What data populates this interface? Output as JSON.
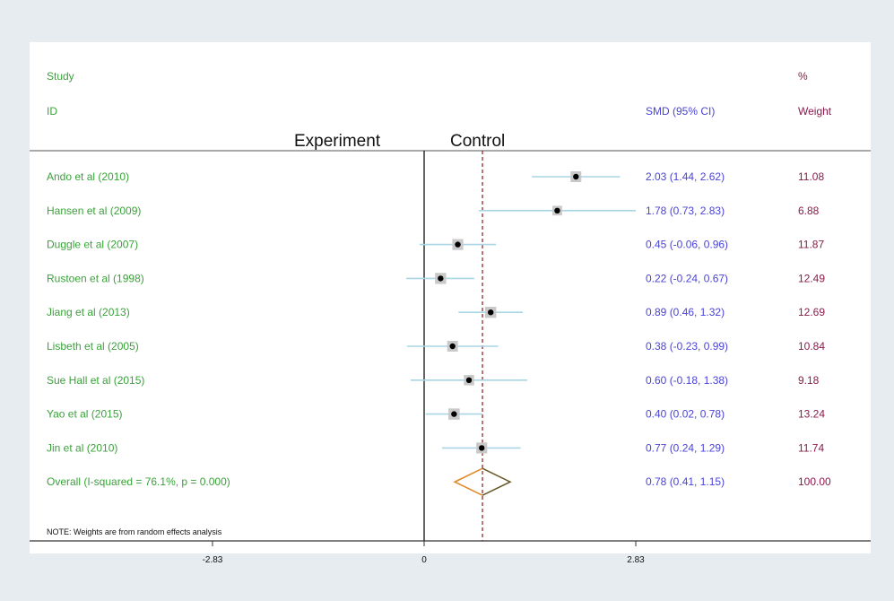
{
  "chart_data": {
    "type": "forest",
    "header": {
      "study_label": "Study",
      "id_label": "ID",
      "effect_label": "SMD (95% CI)",
      "pct_label": "%",
      "weight_label": "Weight"
    },
    "direction_labels": {
      "left": "Experiment",
      "right": "Control"
    },
    "studies": [
      {
        "id": "Ando et al (2010)",
        "smd": 2.03,
        "lower": 1.44,
        "upper": 2.62,
        "ci_text": "2.03 (1.44, 2.62)",
        "weight": "11.08"
      },
      {
        "id": "Hansen et al (2009)",
        "smd": 1.78,
        "lower": 0.73,
        "upper": 2.83,
        "ci_text": "1.78 (0.73, 2.83)",
        "weight": "6.88"
      },
      {
        "id": "Duggle et al (2007)",
        "smd": 0.45,
        "lower": -0.06,
        "upper": 0.96,
        "ci_text": "0.45 (-0.06, 0.96)",
        "weight": "11.87"
      },
      {
        "id": "Rustoen et al (1998)",
        "smd": 0.22,
        "lower": -0.24,
        "upper": 0.67,
        "ci_text": "0.22 (-0.24, 0.67)",
        "weight": "12.49"
      },
      {
        "id": "Jiang et al (2013)",
        "smd": 0.89,
        "lower": 0.46,
        "upper": 1.32,
        "ci_text": "0.89 (0.46, 1.32)",
        "weight": "12.69"
      },
      {
        "id": "Lisbeth et al (2005)",
        "smd": 0.38,
        "lower": -0.23,
        "upper": 0.99,
        "ci_text": "0.38 (-0.23, 0.99)",
        "weight": "10.84"
      },
      {
        "id": "Sue Hall et al (2015)",
        "smd": 0.6,
        "lower": -0.18,
        "upper": 1.38,
        "ci_text": "0.60 (-0.18, 1.38)",
        "weight": "9.18"
      },
      {
        "id": "Yao et al (2015)",
        "smd": 0.4,
        "lower": 0.02,
        "upper": 0.78,
        "ci_text": "0.40 (0.02, 0.78)",
        "weight": "13.24"
      },
      {
        "id": "Jin et al (2010)",
        "smd": 0.77,
        "lower": 0.24,
        "upper": 1.29,
        "ci_text": "0.77 (0.24, 1.29)",
        "weight": "11.74"
      }
    ],
    "overall": {
      "label": "Overall  (I-squared = 76.1%, p = 0.000)",
      "smd": 0.78,
      "lower": 0.41,
      "upper": 1.15,
      "ci_text": "0.78 (0.41, 1.15)",
      "weight": "100.00"
    },
    "note": "NOTE: Weights are from random effects analysis",
    "x_ticks": [
      {
        "value": -2.83,
        "label": "-2.83"
      },
      {
        "value": 0,
        "label": "0"
      },
      {
        "value": 2.83,
        "label": "2.83"
      }
    ],
    "xlim": [
      -3.8,
      3.2
    ],
    "null_line": 0,
    "pooled_line": 0.78,
    "colors": {
      "study_text": "#3aa23a",
      "ci_text": "#4a43d6",
      "weight_text": "#8b1a4a",
      "ci_line": "#a9d6e5",
      "pooled_line": "#8b1a1a",
      "diamond_left": "#e08a2a",
      "diamond_right": "#6b5a2a"
    }
  }
}
